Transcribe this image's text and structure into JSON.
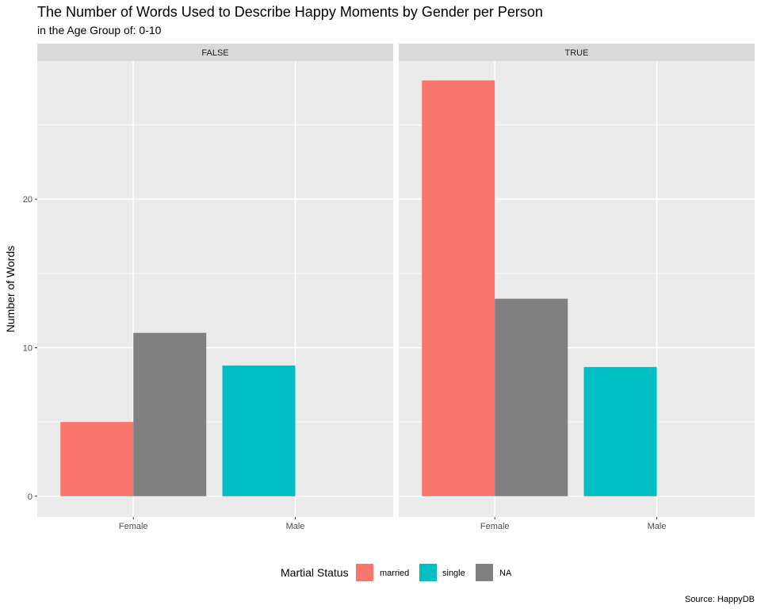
{
  "chart_data": {
    "type": "bar",
    "title": "The Number of Words Used to Describe Happy Moments by Gender per Person",
    "subtitle": "in the Age Group of: 0-10",
    "ylabel": "Number of Words",
    "xlabel": "",
    "caption": "Source: HappyDB",
    "categories": [
      "Female",
      "Male"
    ],
    "ylim": [
      -1.4,
      29.3
    ],
    "yticks": [
      0,
      10,
      20
    ],
    "grid": true,
    "legend": {
      "title": "Martial Status",
      "position": "bottom",
      "items": [
        {
          "label": "married",
          "color": "#F8766D"
        },
        {
          "label": "single",
          "color": "#00BFC4"
        },
        {
          "label": "NA",
          "color": "#808080"
        }
      ]
    },
    "panels": [
      {
        "strip": "FALSE",
        "groups": [
          {
            "category": "Female",
            "bars": [
              {
                "series": "married",
                "value": 5.0,
                "color": "#F8766D"
              },
              {
                "series": "NA",
                "value": 11.0,
                "color": "#808080"
              }
            ]
          },
          {
            "category": "Male",
            "bars": [
              {
                "series": "single",
                "value": 8.8,
                "color": "#00BFC4"
              }
            ]
          }
        ]
      },
      {
        "strip": "TRUE",
        "groups": [
          {
            "category": "Female",
            "bars": [
              {
                "series": "married",
                "value": 28.0,
                "color": "#F8766D"
              },
              {
                "series": "NA",
                "value": 13.3,
                "color": "#808080"
              }
            ]
          },
          {
            "category": "Male",
            "bars": [
              {
                "series": "single",
                "value": 8.7,
                "color": "#00BFC4"
              }
            ]
          }
        ]
      }
    ]
  }
}
